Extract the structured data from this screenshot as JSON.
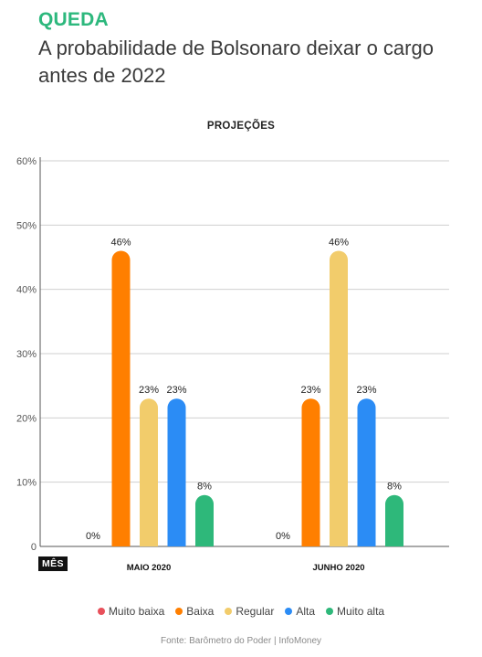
{
  "header": {
    "kicker": "QUEDA",
    "headline": "A probabilidade de Bolsonaro deixar o cargo antes de 2022"
  },
  "chart_data": {
    "type": "bar",
    "title": "PROJEÇÕES",
    "xlabel": "MÊS",
    "ylabel": "",
    "ylim": [
      0,
      60
    ],
    "yticks": [
      0,
      10,
      20,
      30,
      40,
      50,
      60
    ],
    "ytick_labels": [
      "0",
      "10%",
      "20%",
      "30%",
      "40%",
      "50%",
      "60%"
    ],
    "categories": [
      "MAIO 2020",
      "JUNHO 2020"
    ],
    "series": [
      {
        "name": "Muito baixa",
        "color": "#e8505b",
        "values": [
          0,
          0
        ],
        "labels": [
          "0%",
          "0%"
        ]
      },
      {
        "name": "Baixa",
        "color": "#ff7f00",
        "values": [
          46,
          23
        ],
        "labels": [
          "46%",
          "23%"
        ]
      },
      {
        "name": "Regular",
        "color": "#f2cc6b",
        "values": [
          23,
          46
        ],
        "labels": [
          "23%",
          "46%"
        ]
      },
      {
        "name": "Alta",
        "color": "#2b8cf5",
        "values": [
          23,
          23
        ],
        "labels": [
          "23%",
          "23%"
        ]
      },
      {
        "name": "Muito alta",
        "color": "#2eb87a",
        "values": [
          8,
          8
        ],
        "labels": [
          "8%",
          "8%"
        ]
      }
    ],
    "grid": true,
    "legend_position": "bottom"
  },
  "footer": {
    "source": "Fonte: Barômetro do Poder | InfoMoney"
  }
}
